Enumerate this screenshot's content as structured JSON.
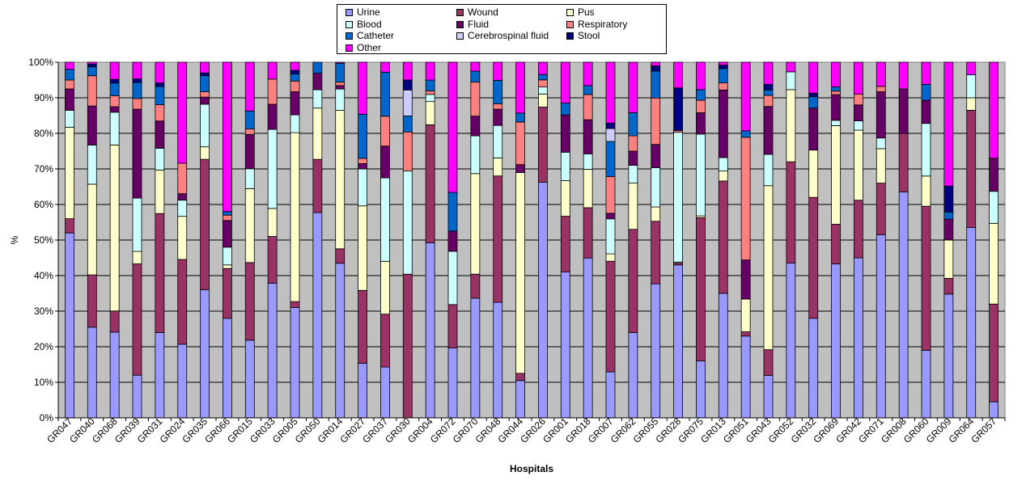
{
  "chart_data": {
    "type": "bar",
    "stacked": "percent",
    "xlabel": "Hospitals",
    "ylabel": "%",
    "ylim": [
      0,
      100
    ],
    "yticks": [
      "0%",
      "10%",
      "20%",
      "30%",
      "40%",
      "50%",
      "60%",
      "70%",
      "80%",
      "90%",
      "100%"
    ],
    "grid": true,
    "legend_position": "top-center",
    "plot_background": "#c0c0c0",
    "categories": [
      "GR047",
      "GR040",
      "GR068",
      "GR039",
      "GR031",
      "GR024",
      "GR035",
      "GR066",
      "GR015",
      "GR033",
      "GR005",
      "GR050",
      "GR014",
      "GR027",
      "GR037",
      "GR030",
      "GR004",
      "GR072",
      "GR070",
      "GR048",
      "GR044",
      "GR026",
      "GR001",
      "GR018",
      "GR007",
      "GR062",
      "GR055",
      "GR028",
      "GR075",
      "GR013",
      "GR051",
      "GR043",
      "GR052",
      "GR032",
      "GR069",
      "GR042",
      "GR071",
      "GR008",
      "GR060",
      "GR009",
      "GR064",
      "GR057"
    ],
    "series": [
      {
        "name": "Urine",
        "color": "#9999ff",
        "values": [
          52,
          25.5,
          23.5,
          12,
          23.5,
          20.5,
          36,
          28,
          21.5,
          37.5,
          31,
          56,
          45,
          15.5,
          12.8,
          0,
          49,
          19,
          33.3,
          32,
          10.5,
          66.7,
          41,
          44.5,
          12.5,
          24,
          37.5,
          43,
          16,
          35,
          23,
          11.5,
          43.5,
          28,
          43.7,
          45,
          51.5,
          63.5,
          19,
          35.5,
          53.5,
          4.5
        ]
      },
      {
        "name": "Wound",
        "color": "#993366",
        "values": [
          4,
          14.7,
          5.8,
          31.3,
          32.8,
          23.6,
          36.7,
          14,
          21.5,
          13,
          1.7,
          14.5,
          4.2,
          20.7,
          13.3,
          40.4,
          33,
          11.8,
          6.7,
          35,
          2,
          21.3,
          15.7,
          14,
          30,
          29,
          17.5,
          0.5,
          40.3,
          31.6,
          1.2,
          7,
          28.5,
          34,
          11.3,
          16.2,
          14.5,
          16.5,
          40.5,
          4.5,
          33,
          27.5
        ]
      },
      {
        "name": "Pus",
        "color": "#ffffcc",
        "values": [
          25.7,
          25.5,
          45.5,
          3.5,
          12,
          12,
          3.5,
          1,
          20.5,
          7.8,
          47.5,
          14,
          40.3,
          24,
          13.3,
          0,
          6.5,
          0,
          28,
          5,
          56.5,
          3.7,
          10,
          10.7,
          2,
          13,
          4,
          0.3,
          0.5,
          2.8,
          9.2,
          44.5,
          20.3,
          13.3,
          28,
          19.7,
          9.7,
          0,
          8.5,
          11,
          3.5,
          22.7
        ]
      },
      {
        "name": "Blood",
        "color": "#ccffff",
        "values": [
          4.8,
          11,
          9,
          15,
          6,
          4.5,
          12,
          5,
          5.5,
          22,
          5,
          5,
          6.2,
          10.5,
          21,
          29,
          2,
          14.5,
          10.5,
          9,
          0,
          2,
          8,
          4.3,
          9.5,
          5,
          11,
          36.5,
          23,
          3.8,
          0,
          8.5,
          5,
          0,
          1.5,
          2.6,
          3,
          0,
          14.8,
          0,
          6.5,
          9
        ]
      },
      {
        "name": "Fluid",
        "color": "#660066",
        "values": [
          6,
          11,
          1.5,
          25,
          7.5,
          1.8,
          2,
          7.5,
          9.5,
          7,
          6.5,
          4.5,
          1,
          1.5,
          8,
          0,
          0,
          5.5,
          5.5,
          4.5,
          2.2,
          0,
          10.5,
          9.5,
          1.5,
          4,
          6.5,
          0,
          6,
          19,
          11,
          13,
          0,
          11.8,
          7.3,
          4.5,
          13,
          12.5,
          6.5,
          6,
          0,
          9.3
        ]
      },
      {
        "name": "Respiratory",
        "color": "#ff8080",
        "values": [
          2.5,
          8.5,
          3,
          3,
          4.5,
          8.5,
          1.5,
          1.5,
          1.5,
          7,
          3,
          0,
          1,
          1.5,
          7.5,
          11,
          1,
          0,
          9.5,
          1.5,
          12,
          2,
          0,
          7,
          10,
          4.3,
          13,
          0.5,
          3.5,
          2,
          34.5,
          3,
          0,
          0,
          1,
          3,
          1.5,
          0,
          0,
          0,
          0,
          0
        ]
      },
      {
        "name": "Catheter",
        "color": "#0066cc",
        "values": [
          3,
          2.5,
          3.5,
          4.5,
          5,
          0,
          4.5,
          1,
          5,
          0,
          2,
          3,
          5.5,
          12.5,
          11.1,
          4.5,
          3,
          10.5,
          3,
          6.5,
          2.5,
          1.5,
          3.3,
          2.5,
          9.5,
          6.5,
          7.5,
          0,
          3,
          4,
          1.8,
          1.5,
          0,
          3.2,
          1.2,
          0,
          0,
          0,
          4.5,
          2,
          0,
          0
        ]
      },
      {
        "name": "Cerebrospinal fluid",
        "color": "#ccccff",
        "values": [
          0,
          0,
          0,
          0,
          0,
          0,
          0,
          0,
          0,
          0,
          0,
          0,
          0,
          0,
          0,
          7.3,
          0,
          0,
          0,
          0,
          0,
          0,
          0,
          0,
          3.5,
          0,
          0,
          0,
          0,
          0,
          0,
          0,
          0,
          0,
          0,
          0,
          0,
          0,
          0,
          0,
          0,
          0
        ]
      },
      {
        "name": "Stool",
        "color": "#000080",
        "values": [
          0,
          0.8,
          1,
          1,
          1,
          0,
          0.8,
          0,
          0,
          0,
          1,
          0,
          0,
          0,
          0,
          2.8,
          0,
          0,
          0,
          0,
          0,
          0,
          0,
          0,
          1.5,
          0,
          1.5,
          12,
          0,
          1,
          0,
          1.5,
          0,
          1,
          0,
          0,
          0,
          0,
          0,
          7.5,
          0,
          0
        ]
      },
      {
        "name": "Other",
        "color": "#ff00ff",
        "values": [
          2,
          0.5,
          4.7,
          4.7,
          5.7,
          28.1,
          3,
          42,
          13.5,
          4.7,
          2.3,
          0,
          0.3,
          14.8,
          2.5,
          5,
          5,
          35.4,
          2.5,
          5,
          14.3,
          3.5,
          11.5,
          6.5,
          16.5,
          14.2,
          1,
          7.2,
          7.7,
          0.8,
          19.3,
          6,
          2.7,
          8.7,
          7,
          9,
          6.8,
          7.5,
          6.2,
          35.5,
          3.5,
          27
        ]
      }
    ]
  }
}
